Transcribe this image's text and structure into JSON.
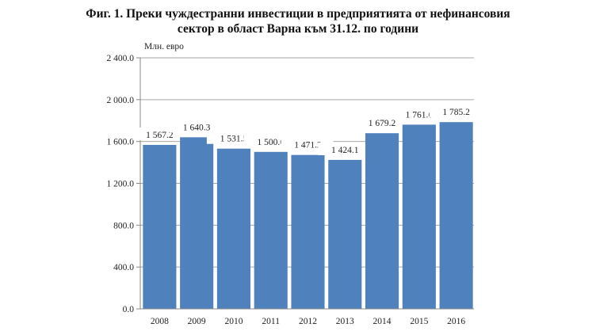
{
  "chart_data": {
    "type": "bar",
    "title": "Фиг. 1. Преки чуждестранни инвестиции в предприятията от нефинансовия сектор в област Варна към 31.12. по години",
    "title_lines": [
      "Фиг. 1. Преки чуждестранни инвестиции в предприятията от нефинансовия",
      "сектор в област Варна към 31.12. по години"
    ],
    "ylabel": "Млн. евро",
    "xlabel": "",
    "categories": [
      "2008",
      "2009",
      "2010",
      "2011",
      "2012",
      "2013",
      "2014",
      "2015",
      "2016"
    ],
    "values": [
      1567.2,
      1640.3,
      1531.5,
      1500.6,
      1471.2,
      1424.1,
      1679.2,
      1761.0,
      1785.2
    ],
    "data_labels": [
      "1 567.2",
      "1 640.3",
      "1 531.5",
      "1 500.6",
      "1 471.2",
      "1 424.1",
      "1 679.2",
      "1 761.0",
      "1 785.2"
    ],
    "ylim": [
      0,
      2400
    ],
    "yticks": [
      0,
      400,
      800,
      1200,
      1600,
      2000,
      2400
    ],
    "ytick_labels": [
      "0.0",
      "400.0",
      "800.0",
      "1 200.0",
      "1 600.0",
      "2 000.0",
      "2 400.0"
    ],
    "grid": true,
    "legend": "none",
    "bar_color": "#4f81bd"
  }
}
